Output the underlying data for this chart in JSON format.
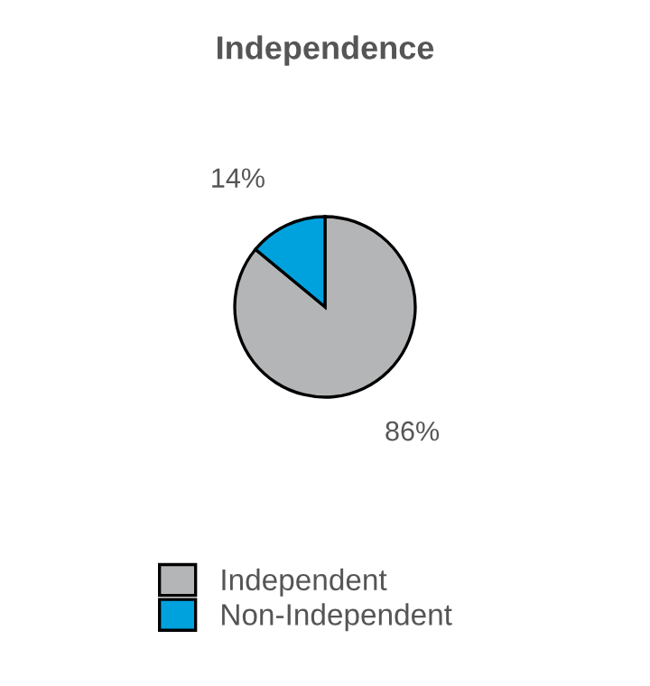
{
  "chart_data": {
    "type": "pie",
    "title": "Independence",
    "categories": [
      "Independent",
      "Non-Independent"
    ],
    "values": [
      86,
      14
    ],
    "colors": [
      "#b3b5b6",
      "#00a2de"
    ],
    "value_labels": [
      "86%",
      "14%"
    ],
    "legend": "bottom"
  }
}
